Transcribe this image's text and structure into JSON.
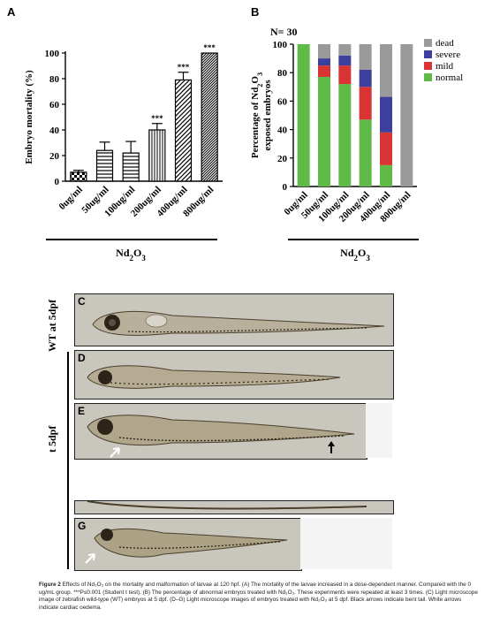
{
  "panels": {
    "a_letter": "A",
    "b_letter": "B",
    "c_letter": "C",
    "d_letter": "D",
    "e_letter": "E",
    "g_letter": "G"
  },
  "side_labels": {
    "wt": "WT at 5dpf",
    "treated": "t 5dpf"
  },
  "chart_data": [
    {
      "type": "bar",
      "ylabel": "Embryo mortality (%)",
      "xlabel": "Nd2O3",
      "categories": [
        "0ug/ml",
        "50ug/ml",
        "100ug/ml",
        "200ug/ml",
        "400ug/ml",
        "800ug/ml"
      ],
      "values": [
        7,
        24,
        22,
        40,
        79,
        100
      ],
      "errors": [
        1.5,
        6.5,
        9,
        5,
        6,
        0
      ],
      "significance": [
        "",
        "",
        "",
        "***",
        "***",
        "***"
      ],
      "ylim": [
        0,
        100
      ],
      "yticks": [
        0,
        20,
        40,
        60,
        80,
        100
      ],
      "patterns": [
        "checker",
        "hlines",
        "hlines",
        "vlines",
        "diag",
        "diag-dense"
      ]
    },
    {
      "type": "bar",
      "stacked": true,
      "annotation": "N= 30",
      "ylabel": "Percentage of Nd2O3 exposed embryos",
      "xlabel": "Nd2O3",
      "categories": [
        "0ug/ml",
        "50ug/ml",
        "100ug/ml",
        "200ug/ml",
        "400ug/ml",
        "800ug/ml"
      ],
      "ylim": [
        0,
        100
      ],
      "yticks": [
        0,
        20,
        40,
        60,
        80,
        100
      ],
      "legend_position": "right",
      "series": [
        {
          "name": "normal",
          "color": "#5fba47",
          "values": [
            100,
            77,
            72,
            47,
            15,
            0
          ]
        },
        {
          "name": "mild",
          "color": "#d93434",
          "values": [
            0,
            8,
            13,
            23,
            23,
            0
          ]
        },
        {
          "name": "severe",
          "color": "#3c3f9e",
          "values": [
            0,
            5,
            7,
            12,
            25,
            0
          ]
        },
        {
          "name": "dead",
          "color": "#9a9a9a",
          "values": [
            0,
            10,
            8,
            18,
            37,
            100
          ]
        }
      ]
    }
  ],
  "caption": {
    "lead": "Figure 2",
    "text": " Effects of Nd₂O₃ on the mortality and malformation of larvae at 120 hpf. (A) The mortality of the larvae increased in a dose-dependent manner. Compared with the 0 ug/mL group. ***P≤0.001 (Student t test). (B) The percentage of abnormal embryos treated with Nd₂O₃. These experiments were repeated at least 3 times. (C) Light microscope image of zebrafish wild-type (WT) embryos at 5 dpf. (D–G) Light microscope images of embryos treated with Nd₂O₃ at 5 dpf. Black arrows indicate bent tail. White arrows indicate cardiac oedema."
  }
}
